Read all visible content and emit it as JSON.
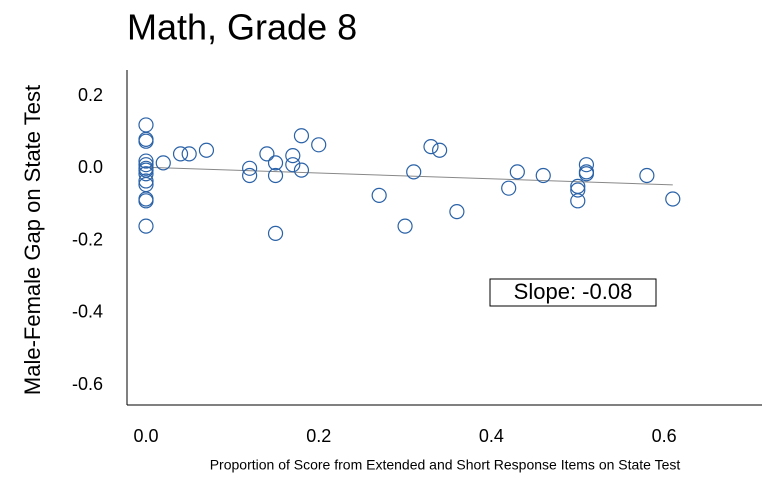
{
  "chart_data": {
    "type": "scatter",
    "title": "Math, Grade 8",
    "x_label": "Proportion of Score from Extended and Short Response Items on State Test",
    "y_label": "Male-Female Gap on State Test",
    "annotation": "Slope: -0.08",
    "xlim": [
      -0.022,
      0.711
    ],
    "ylim": [
      -0.655,
      0.272
    ],
    "xticks": [
      {
        "value": 0,
        "label": "0.0"
      },
      0.2,
      0.4,
      0.6
    ],
    "yticks": [
      0.2,
      {
        "value": 0,
        "label": "0.0"
      },
      -0.2,
      -0.4,
      -0.6
    ],
    "series": [
      {
        "color": "#2a62a8",
        "x": [
          0,
          0,
          0,
          0,
          0,
          0,
          0,
          0,
          0,
          0,
          0,
          0,
          0,
          0.02,
          0.04,
          0.05,
          0.07,
          0.12,
          0.12,
          0.14,
          0.15,
          0.15,
          0.15,
          0.17,
          0.17,
          0.18,
          0.18,
          0.2,
          0.27,
          0.3,
          0.31,
          0.33,
          0.34,
          0.36,
          0.42,
          0.43,
          0.46,
          0.5,
          0.5,
          0.5,
          0.51,
          0.51,
          0.51,
          0.58,
          0.61
        ],
        "values": [
          0.12,
          0.08,
          0.075,
          0.02,
          0.01,
          0.0,
          -0.005,
          -0.015,
          -0.035,
          -0.045,
          -0.085,
          -0.09,
          -0.16,
          0.015,
          0.04,
          0.04,
          0.05,
          0.0,
          -0.02,
          0.04,
          0.015,
          -0.02,
          -0.18,
          0.035,
          0.01,
          0.09,
          -0.005,
          0.065,
          -0.075,
          -0.16,
          -0.01,
          0.06,
          0.05,
          -0.12,
          -0.055,
          -0.01,
          -0.02,
          -0.05,
          -0.06,
          -0.09,
          0.01,
          -0.01,
          -0.015,
          -0.02,
          -0.085
        ]
      }
    ],
    "trendline": {
      "color": "#888888",
      "x": [
        0,
        0.61
      ],
      "values": [
        0.003,
        -0.046
      ]
    }
  }
}
